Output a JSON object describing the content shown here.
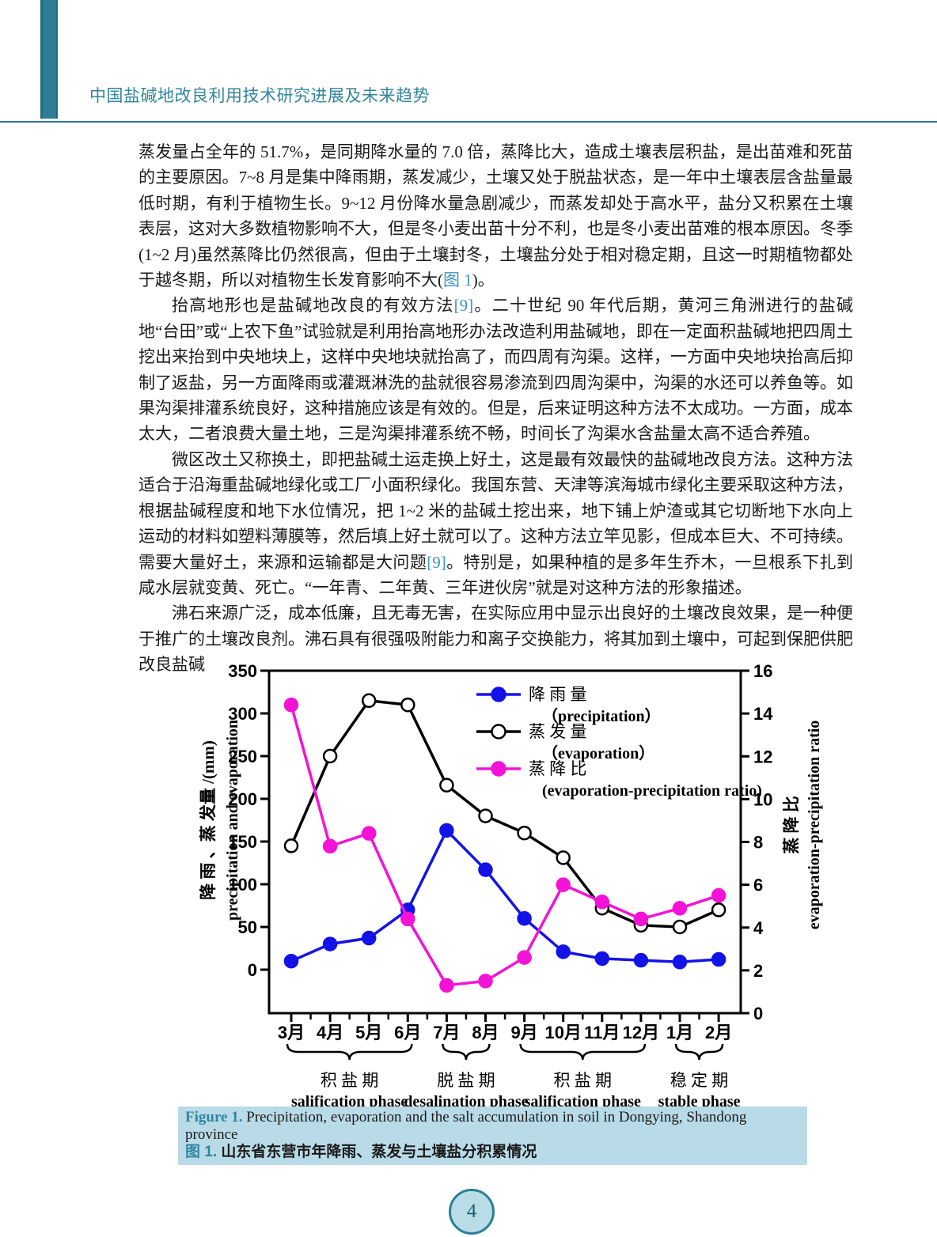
{
  "header": {
    "title": "中国盐碱地改良利用技术研究进展及未来趋势"
  },
  "page": {
    "number": "4"
  },
  "colors": {
    "accent": "#2e7e95",
    "link": "#3e92c0",
    "caption_bg": "#b9dbe7",
    "precipitation": "#1313e8",
    "evaporation": "#000000",
    "ratio": "#f313d6"
  },
  "paragraphs": [
    {
      "segments": [
        "蒸发量占全年的 51.7%，是同期降水量的 7.0 倍，蒸降比大，造成土壤表层积盐，是出苗难和死苗的主要原因。7~8 月是集中降雨期，蒸发减少，土壤又处于脱盐状态，是一年中土壤表层含盐量最低时期，有利于植物生长。9~12 月份降水量急剧减少，而蒸发却处于高水平，盐分又积累在土壤表层，这对大多数植物影响不大，但是冬小麦出苗十分不利，也是冬小麦出苗难的根本原因。冬季(1~2 月)虽然蒸降比仍然很高，但由于土壤封冬，土壤盐分处于相对稳定期，且这一时期植物都处于越冬期，所以对植物生长发育影响不大(",
        "图 1",
        ")。"
      ]
    },
    {
      "segments": [
        "抬高地形也是盐碱地改良的有效方法",
        "[9]",
        "。二十世纪 90 年代后期，黄河三角洲进行的盐碱地“台田”或“上农下鱼”试验就是利用抬高地形办法改造利用盐碱地，即在一定面积盐碱地把四周土挖出来抬到中央地块上，这样中央地块就抬高了，而四周有沟渠。这样，一方面中央地块抬高后抑制了返盐，另一方面降雨或灌溉淋洗的盐就很容易渗流到四周沟渠中，沟渠的水还可以养鱼等。如果沟渠排灌系统良好，这种措施应该是有效的。但是，后来证明这种方法不太成功。一方面，成本太大，二者浪费大量土地，三是沟渠排灌系统不畅，时间长了沟渠水含盐量太高不适合养殖。"
      ]
    },
    {
      "segments": [
        "微区改土又称换土，即把盐碱土运走换上好土，这是最有效最快的盐碱地改良方法。这种方法适合于沿海重盐碱地绿化或工厂小面积绿化。我国东营、天津等滨海城市绿化主要采取这种方法，根据盐碱程度和地下水位情况，把 1~2 米的盐碱土挖出来，地下铺上炉渣或其它切断地下水向上运动的材料如塑料薄膜等，然后填上好土就可以了。这种方法立竿见影，但成本巨大、不可持续。需要大量好土，来源和运输都是大问题",
        "[9]",
        "。特别是，如果种植的是多年生乔木，一旦根系下扎到咸水层就变黄、死亡。“一年青、二年黄、三年进伙房”就是对这种方法的形象描述。"
      ]
    },
    {
      "segments": [
        "沸石来源广泛，成本低廉，且无毒无害，在实际应用中显示出良好的土壤改良效果，是一种便于推广的土壤改良剂。沸石具有很强吸附能力和离子交换能力，将其加到土壤中，可起到保肥供肥改良盐碱"
      ]
    }
  ],
  "chart_data": {
    "type": "line",
    "title": "",
    "categories": [
      "3月",
      "4月",
      "5月",
      "6月",
      "7月",
      "8月",
      "9月",
      "10月",
      "11月",
      "12月",
      "1月",
      "2月"
    ],
    "series": [
      {
        "name": "降 雨 量",
        "name_en": "（precipitation）",
        "axis": "left",
        "color": "#1313e8",
        "marker": "filled",
        "values": [
          10,
          30,
          37,
          70,
          163,
          117,
          60,
          21,
          13,
          11,
          9,
          12
        ]
      },
      {
        "name": "蒸 发 量",
        "name_en": "（evaporation）",
        "axis": "left",
        "color": "#000000",
        "marker": "open",
        "values": [
          145,
          250,
          315,
          310,
          216,
          180,
          160,
          131,
          72,
          52,
          50,
          70
        ]
      },
      {
        "name": "蒸 降 比",
        "name_en": "(evaporation-precipitation ratio)",
        "axis": "right",
        "color": "#f313d6",
        "marker": "filled",
        "values": [
          14.4,
          7.8,
          8.4,
          4.4,
          1.3,
          1.5,
          2.6,
          6.0,
          5.2,
          4.4,
          4.9,
          5.5
        ]
      }
    ],
    "left_axis": {
      "label_cn": "降 雨 、蒸 发量 /(mm)",
      "label_en": "precipitation and evaporation",
      "min": 0,
      "max": 350,
      "ticks": [
        350,
        300,
        250,
        200,
        150,
        100,
        50,
        0
      ]
    },
    "right_axis": {
      "label_cn": "蒸 降 比",
      "label_en": "evaporation-precipitation ratio",
      "min": 0,
      "max": 16,
      "ticks": [
        16,
        14,
        12,
        10,
        8,
        6,
        4,
        2,
        0
      ]
    },
    "phases": [
      {
        "from": 0,
        "to": 3,
        "label_cn": "积 盐 期",
        "label_en": "salification phase"
      },
      {
        "from": 4,
        "to": 5,
        "label_cn": "脱 盐 期",
        "label_en": "desalination phase"
      },
      {
        "from": 6,
        "to": 9,
        "label_cn": "积 盐 期",
        "label_en": "salification phase"
      },
      {
        "from": 10,
        "to": 11,
        "label_cn": "稳 定  期",
        "label_en": "stable phase"
      }
    ],
    "legend_position": "inside-top-right",
    "grid": false
  },
  "caption": {
    "label_en": "Figure 1.",
    "text_en": " Precipitation, evaporation and the salt accumulation in soil in Dongying, Shandong province",
    "label_cn": "图 1.",
    "text_cn": " 山东省东营市年降雨、蒸发与土壤盐分积累情况"
  }
}
